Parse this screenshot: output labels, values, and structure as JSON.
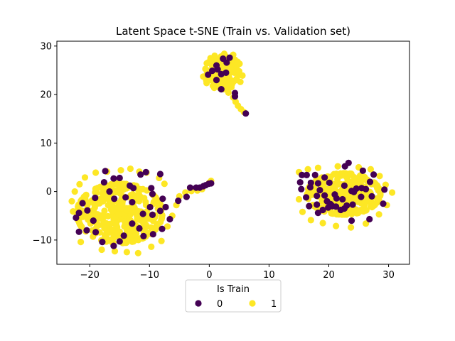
{
  "chart_data": {
    "type": "scatter",
    "title": "Latent Space t-SNE (Train vs. Validation set)",
    "xlabel": "",
    "ylabel": "",
    "xlim": [
      -25.5,
      33.5
    ],
    "ylim": [
      -15,
      31
    ],
    "xticks": [
      -20,
      -10,
      0,
      10,
      20,
      30
    ],
    "yticks": [
      -10,
      0,
      10,
      20,
      30
    ],
    "grid": false,
    "legend": {
      "title": "Is Train",
      "placement": "below-center",
      "entries": [
        {
          "label": "0",
          "color": "#440154"
        },
        {
          "label": "1",
          "color": "#fde725"
        }
      ]
    },
    "series": [
      {
        "name": "1",
        "color": "#fde725",
        "clusters": [
          {
            "cx": -15,
            "cy": -4.5,
            "sx": 4.2,
            "sy": 3.6,
            "n": 360
          },
          {
            "cx": 22.5,
            "cy": -0.5,
            "sx": 3.6,
            "sy": 2.5,
            "n": 300
          },
          {
            "cx": 2.2,
            "cy": 24.5,
            "sx": 2.0,
            "sy": 2.0,
            "n": 110
          }
        ],
        "points": [
          [
            -22.5,
            0.0
          ],
          [
            -21.7,
            1.5
          ],
          [
            -20.8,
            2.9
          ],
          [
            -19.0,
            3.9
          ],
          [
            -17.1,
            4.1
          ],
          [
            -14.8,
            4.4
          ],
          [
            -13.2,
            4.7
          ],
          [
            -11.7,
            4.1
          ],
          [
            -10.5,
            3.9
          ],
          [
            -21.5,
            -10.4
          ],
          [
            -18.0,
            -12.0
          ],
          [
            -15.8,
            -12.3
          ],
          [
            -13.8,
            -12.5
          ],
          [
            -11.9,
            -12.7
          ],
          [
            -9.7,
            -11.4
          ],
          [
            -8.0,
            -10.2
          ],
          [
            -22.8,
            -4.1
          ],
          [
            -23.0,
            -2.0
          ],
          [
            -7.0,
            -7.2
          ],
          [
            -6.2,
            -5.0
          ],
          [
            -5.5,
            -2.8
          ],
          [
            -5.0,
            -1.0
          ],
          [
            -4.0,
            -0.2
          ],
          [
            -3.0,
            0.1
          ],
          [
            0.3,
            2.2
          ],
          [
            0.0,
            1.8
          ],
          [
            -1.2,
            0.5
          ],
          [
            -2.0,
            0.2
          ],
          [
            -7.5,
            1.6
          ],
          [
            -8.4,
            2.8
          ],
          [
            15.0,
            4.0
          ],
          [
            16.5,
            4.6
          ],
          [
            18.2,
            4.9
          ],
          [
            21.5,
            5.2
          ],
          [
            25.0,
            5.0
          ],
          [
            27.0,
            4.6
          ],
          [
            28.5,
            3.2
          ],
          [
            29.5,
            1.4
          ],
          [
            30.6,
            -0.2
          ],
          [
            29.7,
            -2.8
          ],
          [
            28.4,
            -4.7
          ],
          [
            26.2,
            -6.6
          ],
          [
            23.7,
            -7.4
          ],
          [
            21.2,
            -7.1
          ],
          [
            19.0,
            -6.5
          ],
          [
            17.0,
            -5.9
          ],
          [
            15.6,
            -4.2
          ],
          [
            15.0,
            -1.6
          ],
          [
            0.2,
            27.5
          ],
          [
            0.9,
            28.0
          ],
          [
            2.5,
            28.4
          ],
          [
            4.0,
            28.2
          ],
          [
            0.6,
            21.8
          ],
          [
            1.7,
            21.4
          ],
          [
            3.2,
            20.4
          ],
          [
            4.0,
            19.4
          ],
          [
            4.4,
            18.5
          ],
          [
            4.8,
            17.7
          ],
          [
            5.3,
            17.0
          ],
          [
            5.8,
            16.4
          ],
          [
            3.6,
            22.0
          ],
          [
            4.6,
            23.3
          ],
          [
            5.0,
            24.8
          ],
          [
            5.2,
            22.6
          ]
        ]
      },
      {
        "name": "0",
        "color": "#440154",
        "clusters": [],
        "points": [
          [
            -17.4,
            4.2
          ],
          [
            -15.0,
            2.8
          ],
          [
            -16.0,
            2.7
          ],
          [
            -10.6,
            4.0
          ],
          [
            -11.5,
            3.5
          ],
          [
            -8.2,
            3.6
          ],
          [
            -17.6,
            1.9
          ],
          [
            -13.3,
            1.2
          ],
          [
            -12.7,
            0.7
          ],
          [
            -9.7,
            0.7
          ],
          [
            -16.7,
            0.0
          ],
          [
            -9.5,
            -0.5
          ],
          [
            -19.1,
            -1.3
          ],
          [
            -15.9,
            -1.5
          ],
          [
            -14.0,
            -1.2
          ],
          [
            -12.9,
            -2.2
          ],
          [
            -7.8,
            -1.5
          ],
          [
            -21.2,
            -2.4
          ],
          [
            -7.3,
            -3.2
          ],
          [
            -9.9,
            -3.2
          ],
          [
            -20.4,
            -3.9
          ],
          [
            -21.8,
            -4.4
          ],
          [
            -11.1,
            -4.6
          ],
          [
            -9.5,
            -4.8
          ],
          [
            -8.2,
            -4.0
          ],
          [
            -22.3,
            -5.4
          ],
          [
            -6.6,
            -5.7
          ],
          [
            -19.4,
            -6.0
          ],
          [
            -12.9,
            -6.6
          ],
          [
            -11.7,
            -7.6
          ],
          [
            -21.8,
            -8.3
          ],
          [
            -7.9,
            -7.7
          ],
          [
            -9.4,
            -8.8
          ],
          [
            -19.0,
            -8.4
          ],
          [
            -14.3,
            -9.1
          ],
          [
            -11.0,
            -9.2
          ],
          [
            -15.0,
            -10.3
          ],
          [
            -17.9,
            -10.4
          ],
          [
            -16.0,
            -11.2
          ],
          [
            -3.8,
            -1.1
          ],
          [
            -3.2,
            0.8
          ],
          [
            -2.2,
            0.8
          ],
          [
            -1.6,
            0.8
          ],
          [
            -1.0,
            1.1
          ],
          [
            -0.6,
            1.3
          ],
          [
            -0.1,
            1.6
          ],
          [
            0.3,
            1.7
          ],
          [
            -5.2,
            -1.9
          ],
          [
            -20.5,
            -8.0
          ],
          [
            15.5,
            3.4
          ],
          [
            16.3,
            3.4
          ],
          [
            17.7,
            3.4
          ],
          [
            19.3,
            2.9
          ],
          [
            22.7,
            5.2
          ],
          [
            23.3,
            5.9
          ],
          [
            25.7,
            4.3
          ],
          [
            27.5,
            3.5
          ],
          [
            15.2,
            1.9
          ],
          [
            17.0,
            1.8
          ],
          [
            18.2,
            1.7
          ],
          [
            20.1,
            1.8
          ],
          [
            22.6,
            1.2
          ],
          [
            26.9,
            2.0
          ],
          [
            16.9,
            0.9
          ],
          [
            15.4,
            0.5
          ],
          [
            18.5,
            0.3
          ],
          [
            19.3,
            -0.8
          ],
          [
            23.8,
            0.1
          ],
          [
            24.6,
            0.6
          ],
          [
            25.5,
            0.7
          ],
          [
            26.2,
            0.5
          ],
          [
            29.3,
            0.4
          ],
          [
            24.2,
            -0.1
          ],
          [
            18.0,
            -0.9
          ],
          [
            21.3,
            -1.4
          ],
          [
            27.2,
            -1.0
          ],
          [
            16.2,
            -1.2
          ],
          [
            19.7,
            -2.0
          ],
          [
            20.3,
            -2.6
          ],
          [
            22.3,
            -1.6
          ],
          [
            25.4,
            -1.1
          ],
          [
            18.0,
            -2.7
          ],
          [
            21.2,
            -3.1
          ],
          [
            19.9,
            -3.3
          ],
          [
            20.6,
            -3.0
          ],
          [
            22.0,
            -3.8
          ],
          [
            23.0,
            -2.9
          ],
          [
            22.6,
            -3.5
          ],
          [
            24.0,
            -2.7
          ],
          [
            16.7,
            -3.0
          ],
          [
            18.2,
            -4.4
          ],
          [
            19.0,
            -3.8
          ],
          [
            23.8,
            -6.0
          ],
          [
            26.8,
            -5.7
          ],
          [
            29.1,
            -2.5
          ],
          [
            21.0,
            -0.6
          ],
          [
            -0.2,
            24.1
          ],
          [
            0.5,
            24.9
          ],
          [
            1.4,
            25.2
          ],
          [
            2.3,
            27.4
          ],
          [
            2.9,
            26.6
          ],
          [
            3.4,
            27.6
          ],
          [
            2.0,
            24.2
          ],
          [
            2.8,
            24.5
          ],
          [
            1.2,
            23.0
          ],
          [
            2.0,
            21.1
          ],
          [
            4.3,
            20.3
          ],
          [
            4.3,
            19.6
          ],
          [
            6.1,
            16.1
          ],
          [
            1.2,
            26.0
          ]
        ]
      }
    ]
  }
}
